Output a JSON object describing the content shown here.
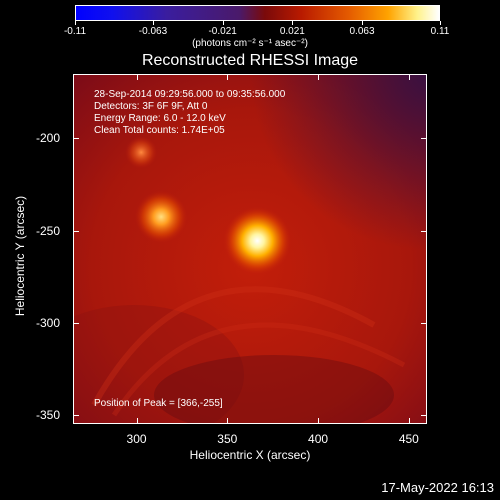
{
  "colorbar": {
    "ticks": [
      "-0.11",
      "-0.063",
      "-0.021",
      "0.021",
      "0.063",
      "0.11"
    ],
    "tick_values": [
      -0.11,
      -0.063,
      -0.021,
      0.021,
      0.063,
      0.11
    ],
    "units_label": "(photons cm⁻² s⁻¹ asec⁻²)",
    "colors": [
      "#0000ff",
      "#4a1a6a",
      "#b81a00",
      "#ffa300",
      "#ffffff"
    ]
  },
  "title": "Reconstructed RHESSI Image",
  "info": {
    "time": "28-Sep-2014 09:29:56.000 to 09:35:56.000",
    "detectors": "Detectors: 3F 6F 9F, Att 0",
    "energy": "Energy Range: 6.0 - 12.0 keV",
    "clean": "Clean     Total counts: 1.74E+05",
    "peak": "Position of Peak = [366,-255]"
  },
  "axes": {
    "xlabel": "Heliocentric X (arcsec)",
    "ylabel": "Heliocentric Y (arcsec)",
    "xticks": [
      "300",
      "350",
      "400",
      "450"
    ],
    "xtick_values": [
      300,
      350,
      400,
      450
    ],
    "yticks": [
      "-200",
      "-250",
      "-300",
      "-350"
    ],
    "ytick_values": [
      -200,
      -250,
      -300,
      -350
    ],
    "xlim": [
      265,
      460
    ],
    "ylim": [
      -355,
      -165
    ]
  },
  "sources": [
    {
      "x": 366,
      "y": -255,
      "intensity": 1.0
    },
    {
      "x": 313,
      "y": -242,
      "intensity": 0.65
    },
    {
      "x": 302,
      "y": -207,
      "intensity": 0.35
    }
  ],
  "footer": {
    "date": "17-May-2022 16:13"
  }
}
